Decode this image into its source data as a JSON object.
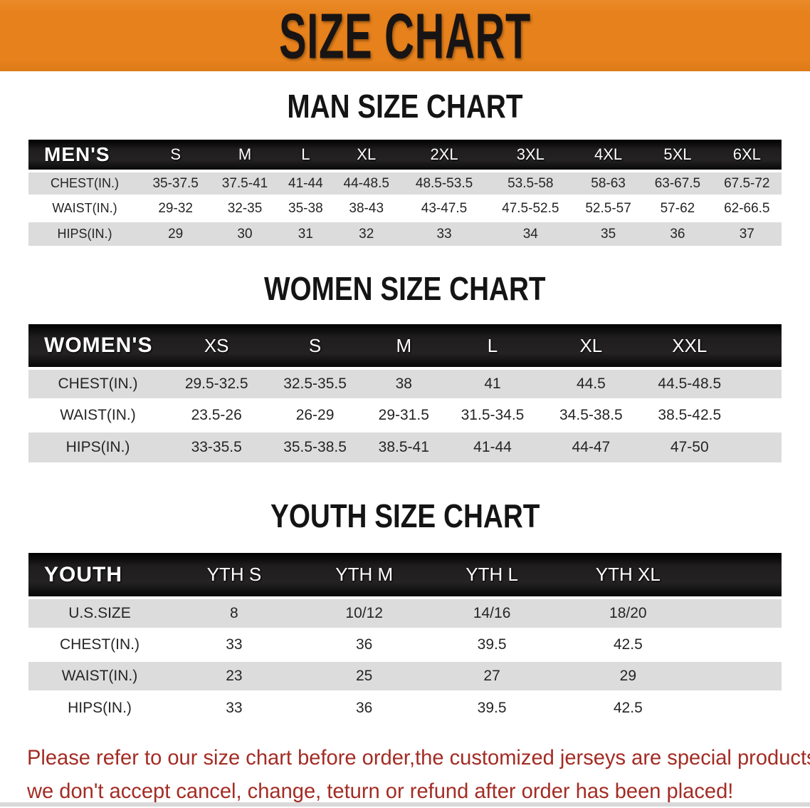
{
  "banner": {
    "title": "SIZE CHART",
    "bg_color": "#E6811C",
    "text_color": "#181414"
  },
  "sections": [
    {
      "title": "MAN SIZE CHART",
      "table": {
        "header_label": "MEN'S",
        "columns": [
          "S",
          "M",
          "L",
          "XL",
          "2XL",
          "3XL",
          "4XL",
          "5XL",
          "6XL"
        ],
        "rows": [
          {
            "label": "CHEST(IN.)",
            "values": [
              "35-37.5",
              "37.5-41",
              "41-44",
              "44-48.5",
              "48.5-53.5",
              "53.5-58",
              "58-63",
              "63-67.5",
              "67.5-72"
            ]
          },
          {
            "label": "WAIST(IN.)",
            "values": [
              "29-32",
              "32-35",
              "35-38",
              "38-43",
              "43-47.5",
              "47.5-52.5",
              "52.5-57",
              "57-62",
              "62-66.5"
            ]
          },
          {
            "label": "HIPS(IN.)",
            "values": [
              "29",
              "30",
              "31",
              "32",
              "33",
              "34",
              "35",
              "36",
              "37"
            ]
          }
        ]
      }
    },
    {
      "title": "WOMEN SIZE CHART",
      "table": {
        "header_label": "WOMEN'S",
        "columns": [
          "XS",
          "S",
          "M",
          "L",
          "XL",
          "XXL"
        ],
        "rows": [
          {
            "label": "CHEST(IN.)",
            "values": [
              "29.5-32.5",
              "32.5-35.5",
              "38",
              "41",
              "44.5",
              "44.5-48.5"
            ]
          },
          {
            "label": "WAIST(IN.)",
            "values": [
              "23.5-26",
              "26-29",
              "29-31.5",
              "31.5-34.5",
              "34.5-38.5",
              "38.5-42.5"
            ]
          },
          {
            "label": "HIPS(IN.)",
            "values": [
              "33-35.5",
              "35.5-38.5",
              "38.5-41",
              "41-44",
              "44-47",
              "47-50"
            ]
          }
        ]
      }
    },
    {
      "title": "YOUTH SIZE CHART",
      "table": {
        "header_label": "YOUTH",
        "columns": [
          "YTH S",
          "YTH M",
          "YTH L",
          "YTH XL"
        ],
        "rows": [
          {
            "label": "U.S.SIZE",
            "values": [
              "8",
              "10/12",
              "14/16",
              "18/20"
            ]
          },
          {
            "label": "CHEST(IN.)",
            "values": [
              "33",
              "36",
              "39.5",
              "42.5"
            ]
          },
          {
            "label": "WAIST(IN.)",
            "values": [
              "23",
              "25",
              "27",
              "29"
            ]
          },
          {
            "label": "HIPS(IN.)",
            "values": [
              "33",
              "36",
              "39.5",
              "42.5"
            ]
          }
        ]
      }
    }
  ],
  "disclaimer": {
    "line1": "Please refer to our size chart before order,the customized jerseys are special products,",
    "line2": "we don't accept cancel, change, teturn or refund after order has been placed!",
    "color": "#A32C24"
  }
}
